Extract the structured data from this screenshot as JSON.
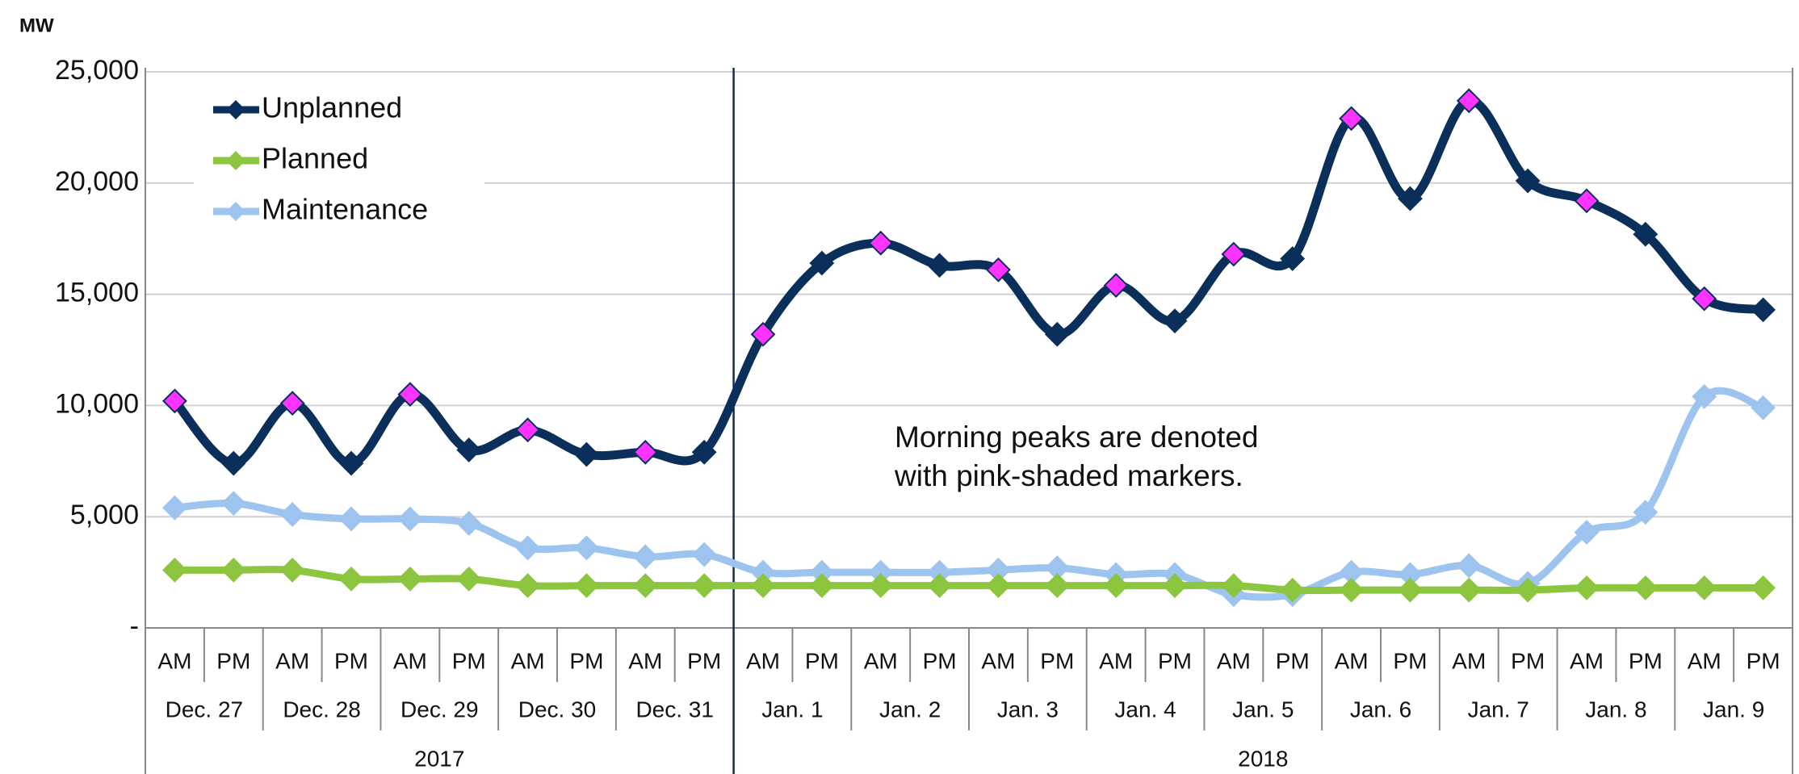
{
  "chart_data": {
    "type": "line",
    "y_label": "MW",
    "categories": [
      "AM",
      "PM",
      "AM",
      "PM",
      "AM",
      "PM",
      "AM",
      "PM",
      "AM",
      "PM",
      "AM",
      "PM",
      "AM",
      "PM",
      "AM",
      "PM",
      "AM",
      "PM",
      "AM",
      "PM",
      "AM",
      "PM",
      "AM",
      "PM",
      "AM",
      "PM",
      "AM",
      "PM"
    ],
    "day_groups": [
      {
        "year": "2017",
        "days": [
          "Dec. 27",
          "Dec. 28",
          "Dec. 29",
          "Dec. 30",
          "Dec. 31"
        ]
      },
      {
        "year": "2018",
        "days": [
          "Jan. 1",
          "Jan. 2",
          "Jan. 3",
          "Jan. 4",
          "Jan. 5",
          "Jan. 6",
          "Jan. 7",
          "Jan. 8",
          "Jan. 9"
        ]
      }
    ],
    "series": [
      {
        "name": "Unplanned",
        "color": "#0b2f5b",
        "values": [
          10200,
          7400,
          10100,
          7400,
          10500,
          8000,
          8900,
          7800,
          7900,
          7900,
          13200,
          16400,
          17300,
          16300,
          16100,
          13200,
          15400,
          13800,
          16800,
          16600,
          22900,
          19300,
          23700,
          20100,
          19200,
          17700,
          14800,
          14300
        ]
      },
      {
        "name": "Planned",
        "color": "#8cc63e",
        "values": [
          2600,
          2600,
          2600,
          2200,
          2200,
          2200,
          1900,
          1900,
          1900,
          1900,
          1900,
          1900,
          1900,
          1900,
          1900,
          1900,
          1900,
          1900,
          1900,
          1700,
          1700,
          1700,
          1700,
          1700,
          1800,
          1800,
          1800,
          1800
        ]
      },
      {
        "name": "Maintenance",
        "color": "#9dc3ef",
        "values": [
          5400,
          5600,
          5100,
          4900,
          4900,
          4700,
          3600,
          3600,
          3200,
          3300,
          2500,
          2500,
          2500,
          2500,
          2600,
          2700,
          2400,
          2400,
          1500,
          1500,
          2500,
          2400,
          2800,
          2000,
          4300,
          5200,
          10400,
          9900
        ]
      }
    ],
    "highlight": {
      "series": "Unplanned",
      "category": "AM",
      "color": "#ff33ff"
    },
    "annotation": [
      "Morning peaks are denoted",
      "with pink-shaded markers."
    ],
    "ylim": [
      0,
      25000
    ],
    "yticks": [
      {
        "value": 0,
        "label": "-"
      },
      {
        "value": 5000,
        "label": "5,000"
      },
      {
        "value": 10000,
        "label": "10,000"
      },
      {
        "value": 15000,
        "label": "15,000"
      },
      {
        "value": 20000,
        "label": "20,000"
      },
      {
        "value": 25000,
        "label": "25,000"
      }
    ],
    "grid": true,
    "legend": "upper left"
  }
}
